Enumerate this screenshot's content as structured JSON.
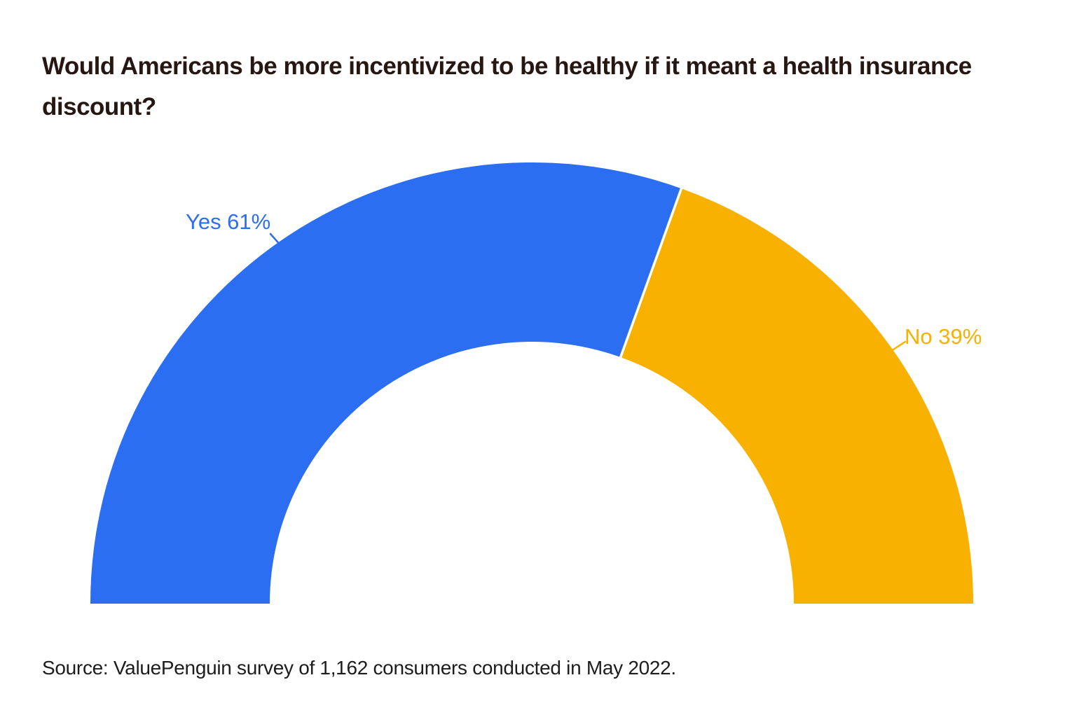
{
  "page": {
    "title": "Would Americans be more incentivized to be healthy if it meant a health insurance discount?",
    "source": "Source: ValuePenguin survey of 1,162 consumers conducted in May 2022."
  },
  "chart_data": {
    "type": "pie",
    "subtype": "half-donut",
    "title": "Would Americans be more incentivized to be healthy if it meant a health insurance discount?",
    "total": 100,
    "start_angle_deg": 180,
    "end_angle_deg": 0,
    "legend_position": "none",
    "grid": false,
    "series": [
      {
        "name": "Yes",
        "value": 61,
        "label": "Yes 61%",
        "color": "#2C6EF1"
      },
      {
        "name": "No",
        "value": 39,
        "label": "No 39%",
        "color": "#F8B101"
      }
    ],
    "divider_color": "#ffffff",
    "source": "Source: ValuePenguin survey of 1,162 consumers conducted in May 2022."
  }
}
